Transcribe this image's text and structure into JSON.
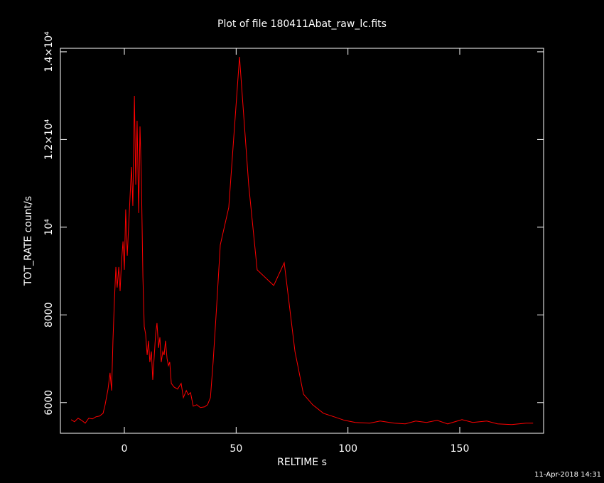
{
  "chart_data": {
    "type": "line",
    "title": "Plot of file 180411Abat_raw_lc.fits",
    "x_label": "RELTIME  s",
    "y_label": "TOT_RATE  count/s",
    "date_stamp": "11-Apr-2018 14:31",
    "color": "#ff0000",
    "xlim": [
      -28.6,
      187.5
    ],
    "ylim": [
      5300,
      14080
    ],
    "xticks": [
      0,
      50,
      100,
      150
    ],
    "yticks": [
      6000,
      8000,
      {
        "value": 10000,
        "label": "10⁴"
      },
      {
        "value": 12000,
        "label": "1.2×10⁴"
      },
      {
        "value": 14000,
        "label": "1.4×10⁴"
      }
    ],
    "x": [
      -23.8,
      -22.3,
      -20.7,
      -19.1,
      -17.5,
      -15.9,
      -14.3,
      -12.7,
      -11.1,
      -9.5,
      -8.6,
      -7.3,
      -6.4,
      -5.7,
      -5.1,
      -4.4,
      -3.8,
      -3.2,
      -2.5,
      -1.9,
      -1.3,
      -0.6,
      0.0,
      0.6,
      1.3,
      1.9,
      2.5,
      3.2,
      3.8,
      4.5,
      5.1,
      5.7,
      6.4,
      7.0,
      7.6,
      8.3,
      8.9,
      9.5,
      10.2,
      10.8,
      11.4,
      12.1,
      12.7,
      13.4,
      14.0,
      14.6,
      15.3,
      15.9,
      16.5,
      17.2,
      17.8,
      18.4,
      19.1,
      19.7,
      20.3,
      21.0,
      22.2,
      23.8,
      25.4,
      26.4,
      27.7,
      28.6,
      29.6,
      30.8,
      32.4,
      34.0,
      35.9,
      37.2,
      38.5,
      39.7,
      41.3,
      42.9,
      46.7,
      51.5,
      55.6,
      59.4,
      66.8,
      71.5,
      76.3,
      80.1,
      84.2,
      89.0,
      93.8,
      98.5,
      103.3,
      109.7,
      114.4,
      120.8,
      125.6,
      130.3,
      135.1,
      139.9,
      144.6,
      151.0,
      155.8,
      162.1,
      166.9,
      173.2,
      179.6,
      182.8
    ],
    "values": [
      5611,
      5563,
      5644,
      5595,
      5530,
      5644,
      5628,
      5676,
      5692,
      5757,
      5951,
      6308,
      6680,
      6275,
      7409,
      8380,
      9092,
      8623,
      9092,
      8542,
      9189,
      9675,
      9028,
      10404,
      9351,
      9999,
      10647,
      11375,
      10485,
      12994,
      10971,
      12427,
      10323,
      12298,
      11132,
      8866,
      7732,
      7570,
      7085,
      7409,
      6923,
      7166,
      6518,
      7085,
      7570,
      7813,
      7247,
      7489,
      6923,
      7166,
      7085,
      7409,
      7004,
      6842,
      6923,
      6437,
      6356,
      6308,
      6437,
      6113,
      6275,
      6178,
      6227,
      5919,
      5951,
      5887,
      5903,
      5951,
      6113,
      6923,
      8218,
      9594,
      10452,
      13885,
      10971,
      9028,
      8671,
      9189,
      7166,
      6194,
      5951,
      5757,
      5676,
      5595,
      5547,
      5530,
      5579,
      5530,
      5514,
      5579,
      5547,
      5595,
      5514,
      5611,
      5547,
      5579,
      5514,
      5498,
      5530,
      5530
    ]
  }
}
